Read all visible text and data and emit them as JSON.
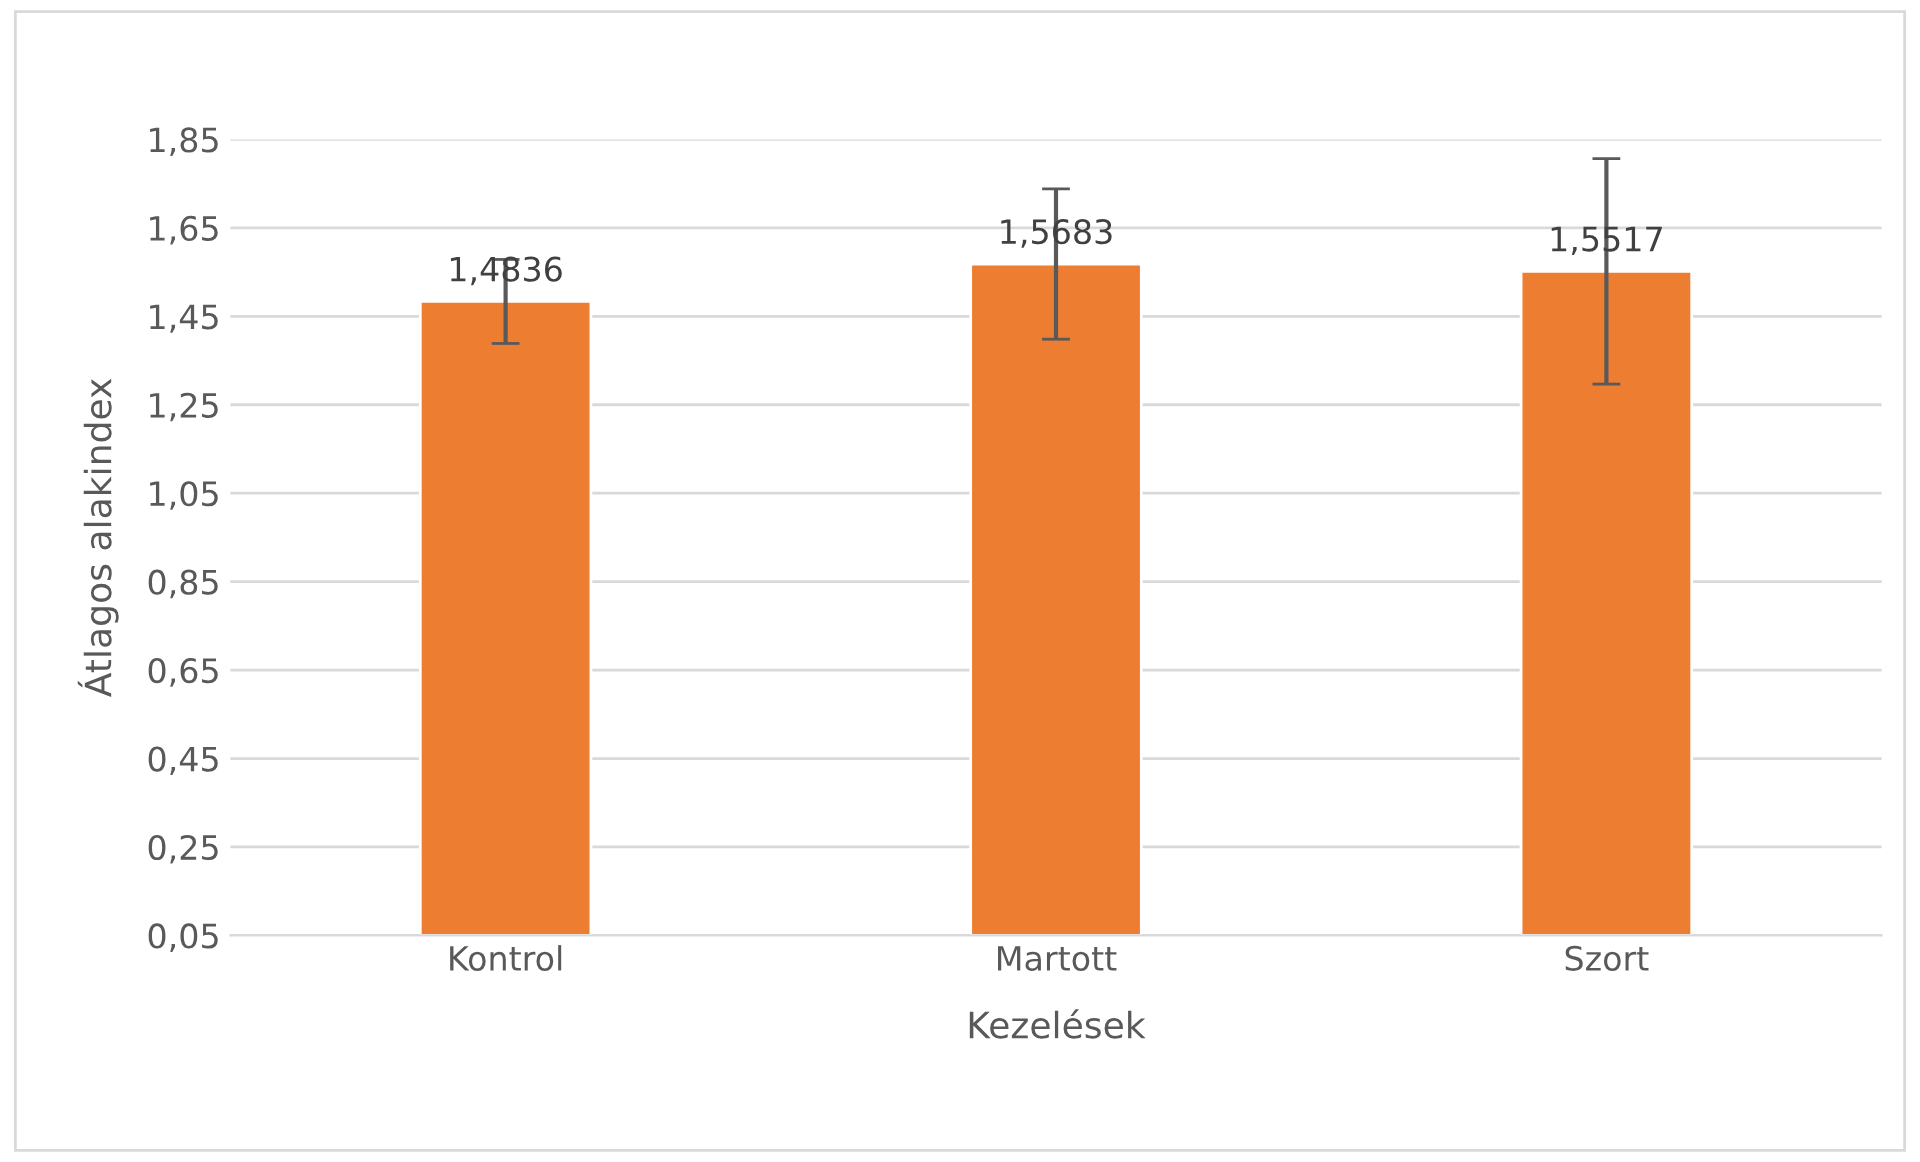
{
  "chart_data": {
    "type": "bar",
    "xlabel": "Kezelések",
    "ylabel": "Átlagos alakindex",
    "categories": [
      "Kontrol",
      "Martott",
      "Szort"
    ],
    "values": [
      1.4836,
      1.5683,
      1.5517
    ],
    "value_labels": [
      "1,4836",
      "1,5683",
      "1,5517"
    ],
    "errors": [
      0.095,
      0.17,
      0.255
    ],
    "color": "#ed7d31",
    "ylim": [
      0.05,
      1.85
    ],
    "yticks": [
      {
        "value": 0.05,
        "label": "0,05"
      },
      {
        "value": 0.25,
        "label": "0,25"
      },
      {
        "value": 0.45,
        "label": "0,45"
      },
      {
        "value": 0.65,
        "label": "0,65"
      },
      {
        "value": 0.85,
        "label": "0,85"
      },
      {
        "value": 1.05,
        "label": "1,05"
      },
      {
        "value": 1.25,
        "label": "1,25"
      },
      {
        "value": 1.45,
        "label": "1,45"
      },
      {
        "value": 1.65,
        "label": "1,65"
      },
      {
        "value": 1.85,
        "label": "1,85"
      }
    ],
    "grid": "y",
    "legend": false
  }
}
